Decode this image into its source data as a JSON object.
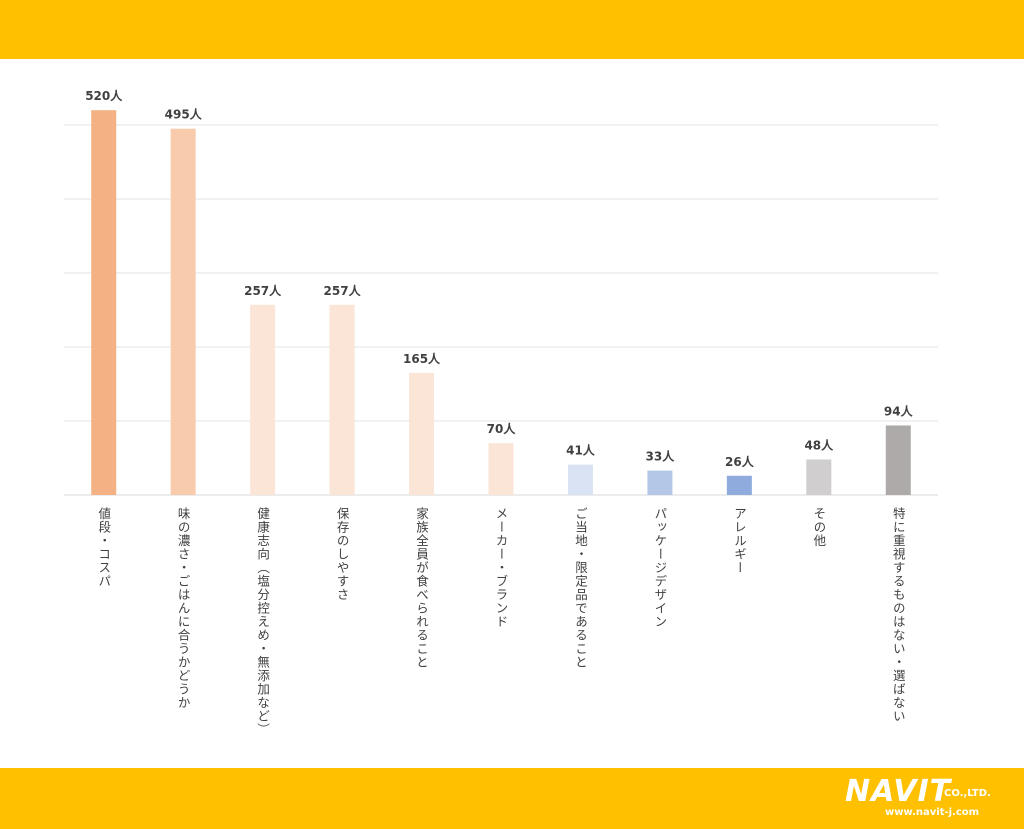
{
  "chart_data": {
    "type": "bar",
    "title": "",
    "xlabel": "",
    "ylabel": "",
    "ylim": [
      0,
      500
    ],
    "grid": true,
    "categories": [
      "値段・コスパ",
      "味の濃さ・ごはんに合うかどうか",
      "健康志向（塩分控えめ・無添加など）",
      "保存のしやすさ",
      "家族全員が食べられること",
      "メーカー・ブランド",
      "ご当地・限定品であること",
      "パッケージデザイン",
      "アレルギー",
      "その他",
      "特に重視するものはない・選ばない"
    ],
    "values": [
      520,
      495,
      257,
      257,
      165,
      70,
      41,
      33,
      26,
      48,
      94
    ],
    "value_labels": [
      "520人",
      "495人",
      "257人",
      "257人",
      "165人",
      "70人",
      "41人",
      "33人",
      "26人",
      "48人",
      "94人"
    ],
    "colors": [
      "#f4b183",
      "#f8cbad",
      "#fbe5d6",
      "#fbe5d6",
      "#fbe5d6",
      "#fbe5d6",
      "#dae3f3",
      "#b4c7e7",
      "#8faadc",
      "#d0cece",
      "#aeaaaa"
    ]
  },
  "footer": {
    "logo_mark": "NAVIT",
    "logo_suffix": "CO.,LTD.",
    "url": "www.navit-j.com"
  }
}
